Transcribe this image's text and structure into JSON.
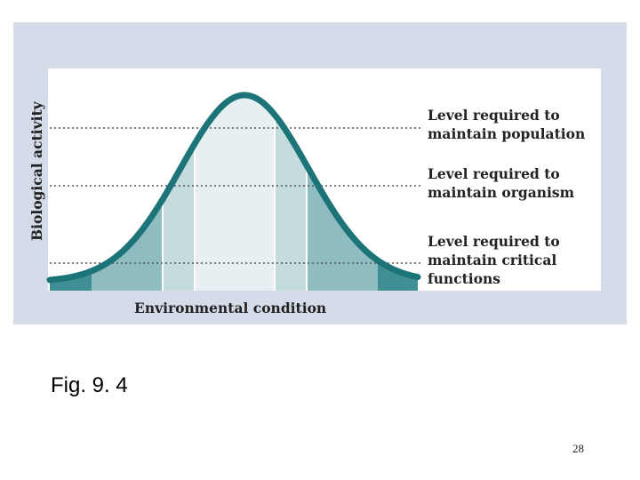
{
  "diagram": {
    "y_label": "Biological activity",
    "x_label": "Environmental condition",
    "levels": [
      {
        "label": "Level required to\nmaintain population"
      },
      {
        "label": "Level required to\nmaintain organism"
      },
      {
        "label": "Level required to\nmaintain critical\nfunctions"
      }
    ],
    "colors": {
      "panel_background": "#d4dbe9",
      "plot_background": "#ffffff",
      "curve": "#1c7478",
      "zone_outer": "#3f8f94",
      "zone_mid": "#8fbcc0",
      "zone_inner": "#c5dcdf",
      "zone_center": "#e6f0f3"
    }
  },
  "caption": "Fig. 9. 4",
  "page_number": "28"
}
